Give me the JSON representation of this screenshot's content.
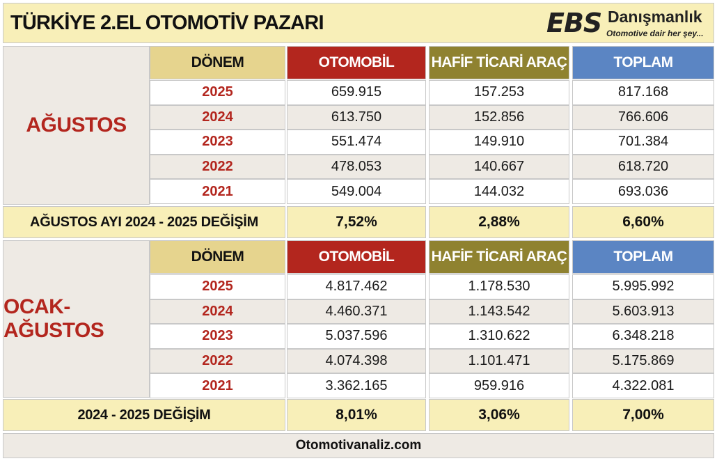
{
  "title": "TÜRKİYE 2.EL OTOMOTİV PAZARI",
  "logo": {
    "mark": "EBS",
    "name": "Danışmanlık",
    "tagline": "Otomotive dair her şey..."
  },
  "headers": {
    "period": "DÖNEM",
    "car": "OTOMOBİL",
    "lcv": "HAFİF TİCARİ ARAÇ",
    "total": "TOPLAM"
  },
  "colors": {
    "red": "#b3261e",
    "olive": "#8f8230",
    "blue": "#5b85c3",
    "cream": "#f8efb8",
    "tan": "#e6d48e"
  },
  "section1": {
    "label": "AĞUSTOS",
    "rows": [
      {
        "year": "2025",
        "car": "659.915",
        "lcv": "157.253",
        "total": "817.168"
      },
      {
        "year": "2024",
        "car": "613.750",
        "lcv": "152.856",
        "total": "766.606"
      },
      {
        "year": "2023",
        "car": "551.474",
        "lcv": "149.910",
        "total": "701.384"
      },
      {
        "year": "2022",
        "car": "478.053",
        "lcv": "140.667",
        "total": "618.720"
      },
      {
        "year": "2021",
        "car": "549.004",
        "lcv": "144.032",
        "total": "693.036"
      }
    ],
    "change_label": "AĞUSTOS AYI  2024 - 2025 DEĞİŞİM",
    "change": {
      "car": "7,52%",
      "lcv": "2,88%",
      "total": "6,60%"
    }
  },
  "section2": {
    "label": "OCAK-AĞUSTOS",
    "rows": [
      {
        "year": "2025",
        "car": "4.817.462",
        "lcv": "1.178.530",
        "total": "5.995.992"
      },
      {
        "year": "2024",
        "car": "4.460.371",
        "lcv": "1.143.542",
        "total": "5.603.913"
      },
      {
        "year": "2023",
        "car": "5.037.596",
        "lcv": "1.310.622",
        "total": "6.348.218"
      },
      {
        "year": "2022",
        "car": "4.074.398",
        "lcv": "1.101.471",
        "total": "5.175.869"
      },
      {
        "year": "2021",
        "car": "3.362.165",
        "lcv": "959.916",
        "total": "4.322.081"
      }
    ],
    "change_label": "2024 - 2025 DEĞİŞİM",
    "change": {
      "car": "8,01%",
      "lcv": "3,06%",
      "total": "7,00%"
    }
  },
  "footer": "Otomotivanaliz.com"
}
